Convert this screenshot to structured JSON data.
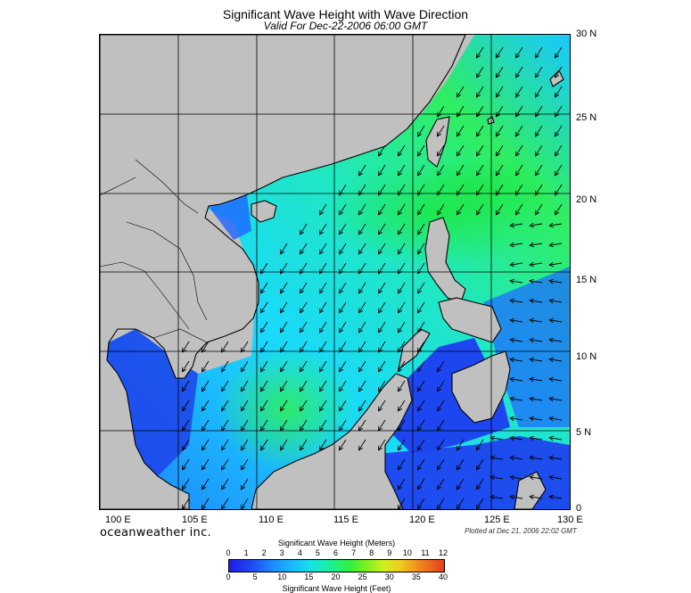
{
  "title": "Significant Wave Height with Wave Direction",
  "subtitle": "Valid For Dec-22-2006 06:00 GMT",
  "lat_labels": [
    "30 N",
    "25 N",
    "20 N",
    "15 N",
    "10 N",
    "5 N",
    "0"
  ],
  "lon_labels": [
    "100 E",
    "105 E",
    "110 E",
    "115 E",
    "120 E",
    "125 E",
    "130 E"
  ],
  "brand": "oceanweather inc.",
  "plotted": "Plotted at Dec 21, 2006 22:02 GMT",
  "colorbar": {
    "title_meters": "Significant Wave Height (Meters)",
    "title_feet": "Significant Wave Height (Feet)",
    "meters_ticks": [
      "0",
      "1",
      "2",
      "3",
      "4",
      "5",
      "6",
      "7",
      "8",
      "9",
      "10",
      "11",
      "12"
    ],
    "feet_ticks": [
      "0",
      "5",
      "10",
      "15",
      "20",
      "25",
      "30",
      "35",
      "40"
    ]
  },
  "colors": {
    "land": "#c0c0c0",
    "grid": "#000000",
    "arrow": "#000000"
  }
}
